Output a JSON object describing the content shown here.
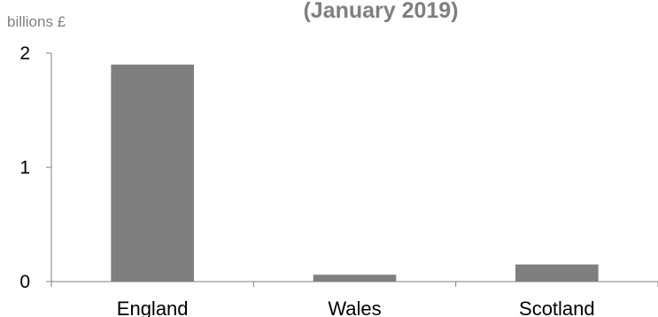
{
  "chart_data": {
    "type": "bar",
    "title": "(January  2019)",
    "unit_label": "billions £",
    "categories": [
      "England",
      "Wales",
      "Scotland"
    ],
    "values": [
      1.9,
      0.06,
      0.15
    ],
    "ylim": [
      0,
      2
    ],
    "yticks": [
      "0",
      "1",
      "2"
    ],
    "grid": false,
    "bar_color": "#7f7f7f",
    "axis_color": "#808080"
  }
}
